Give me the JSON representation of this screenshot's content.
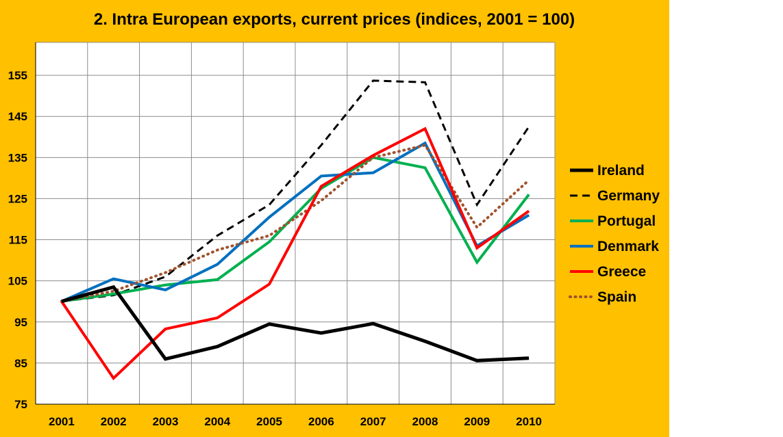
{
  "chart_data": {
    "type": "line",
    "title": "2. Intra European exports, current prices (indices, 2001 = 100)",
    "xlabel": "",
    "ylabel": "",
    "x": [
      "2001",
      "2002",
      "2003",
      "2004",
      "2005",
      "2006",
      "2007",
      "2008",
      "2009",
      "2010"
    ],
    "ylim": [
      75,
      163
    ],
    "yticks": [
      75,
      85,
      95,
      105,
      115,
      125,
      135,
      145,
      155
    ],
    "grid": true,
    "legend_position": "right",
    "background_color": "#FFC000",
    "plot_background_color": "#FFFFFF",
    "series": [
      {
        "name": "Ireland",
        "color": "#000000",
        "style": "solid-thick",
        "values": [
          100,
          103.5,
          86,
          89,
          94.5,
          92.3,
          94.6,
          90.3,
          85.6,
          86.2
        ]
      },
      {
        "name": "Germany",
        "color": "#000000",
        "style": "dashed",
        "values": [
          100,
          101.5,
          106,
          116,
          123.5,
          138,
          153.7,
          153.3,
          123.5,
          142.5
        ]
      },
      {
        "name": "Portugal",
        "color": "#00B050",
        "style": "solid",
        "values": [
          100,
          101.8,
          104,
          105.3,
          114.5,
          127.5,
          135,
          132.5,
          109.5,
          126
        ]
      },
      {
        "name": "Denmark",
        "color": "#0070C0",
        "style": "solid",
        "values": [
          100,
          105.5,
          102.8,
          109,
          120.5,
          130.5,
          131.3,
          138.5,
          113.5,
          121
        ]
      },
      {
        "name": "Greece",
        "color": "#FF0000",
        "style": "solid",
        "values": [
          100,
          81.3,
          93.3,
          96,
          104.2,
          128,
          135.5,
          142,
          113,
          122
        ]
      },
      {
        "name": "Spain",
        "color": "#A0522D",
        "style": "dotted",
        "values": [
          100,
          102.5,
          107,
          112.5,
          116,
          124.5,
          135,
          138,
          118,
          129.5
        ]
      }
    ]
  }
}
